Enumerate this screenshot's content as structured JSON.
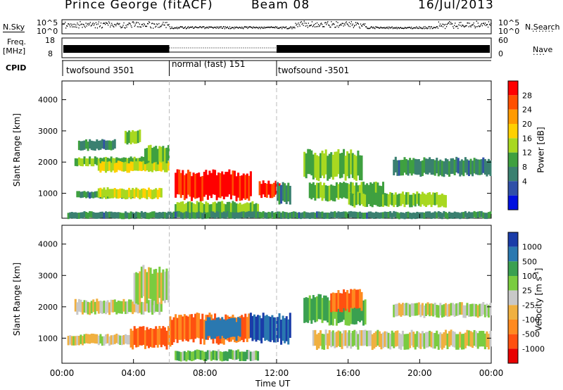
{
  "header": {
    "station": "Prince George (fitACF)",
    "beam": "Beam 08",
    "date": "16/Jul/2013"
  },
  "noise_panel": {
    "left_label": "N.Sky",
    "right_label": "N.Search",
    "left_ticks": [
      "10^5",
      "10^0"
    ],
    "right_ticks": [
      "10^5",
      "10^0"
    ]
  },
  "freq_panel": {
    "left_label_line1": "Freq.",
    "left_label_line2": "[MHz]",
    "right_label": "Nave",
    "left_ticks": [
      "18",
      "8"
    ],
    "right_ticks": [
      "60",
      "0"
    ]
  },
  "cpid_panel": {
    "label": "CPID",
    "modes": [
      "twofsound 3501",
      "normal (fast) 151",
      "twofsound -3501"
    ]
  },
  "chart_data": [
    {
      "type": "heatmap",
      "panel": "power",
      "ylabel": "Slant Range [km]",
      "ylim": [
        200,
        4600
      ],
      "yticks": [
        1000,
        2000,
        3000,
        4000
      ],
      "x_tick_labels": [
        "00:00",
        "04:00",
        "08:00",
        "12:00",
        "16:00",
        "20:00",
        "00:00"
      ],
      "xlim_hours": [
        0,
        24
      ],
      "colorbar": {
        "label": "Power [dB]",
        "ticks": [
          "28",
          "24",
          "20",
          "16",
          "12",
          "8",
          "4"
        ],
        "colors": [
          "#ff0000",
          "#ff5000",
          "#ff9a00",
          "#ffd000",
          "#a8d820",
          "#3fa040",
          "#3a8070",
          "#3050a8",
          "#0010e0"
        ]
      },
      "echo_regions": [
        {
          "t0": 0.7,
          "t1": 5.4,
          "r0": 1900,
          "r1": 2150,
          "level": 12
        },
        {
          "t0": 2.0,
          "t1": 6.0,
          "r0": 1700,
          "r1": 2000,
          "level": 16
        },
        {
          "t0": 4.6,
          "t1": 6.0,
          "r0": 2000,
          "r1": 2500,
          "level": 12
        },
        {
          "t0": 0.8,
          "t1": 4.0,
          "r0": 850,
          "r1": 1050,
          "level": 8
        },
        {
          "t0": 2.0,
          "t1": 5.6,
          "r0": 850,
          "r1": 1150,
          "level": 16
        },
        {
          "t0": 0.9,
          "t1": 3.0,
          "r0": 2400,
          "r1": 2700,
          "level": 8
        },
        {
          "t0": 3.5,
          "t1": 4.4,
          "r0": 2600,
          "r1": 3000,
          "level": 12
        },
        {
          "t0": 6.3,
          "t1": 10.6,
          "r0": 850,
          "r1": 1650,
          "level": 28
        },
        {
          "t0": 6.3,
          "t1": 11.0,
          "r0": 300,
          "r1": 700,
          "level": 12
        },
        {
          "t0": 11.0,
          "t1": 12.2,
          "r0": 900,
          "r1": 1350,
          "level": 28
        },
        {
          "t0": 12.0,
          "t1": 12.8,
          "r0": 700,
          "r1": 1300,
          "level": 8
        },
        {
          "t0": 13.5,
          "t1": 16.8,
          "r0": 1500,
          "r1": 2300,
          "level": 12
        },
        {
          "t0": 13.8,
          "t1": 18.0,
          "r0": 800,
          "r1": 1300,
          "level": 12
        },
        {
          "t0": 16.0,
          "t1": 21.5,
          "r0": 600,
          "r1": 1000,
          "level": 12
        },
        {
          "t0": 18.5,
          "t1": 24.0,
          "r0": 1600,
          "r1": 2100,
          "level": 8
        },
        {
          "t0": 0.3,
          "t1": 24.0,
          "r0": 200,
          "r1": 400,
          "level": 8
        }
      ]
    },
    {
      "type": "heatmap",
      "panel": "velocity",
      "ylabel": "Slant Range [km]",
      "ylim": [
        200,
        4600
      ],
      "yticks": [
        1000,
        2000,
        3000,
        4000
      ],
      "x_tick_labels": [
        "00:00",
        "04:00",
        "08:00",
        "12:00",
        "16:00",
        "20:00",
        "00:00"
      ],
      "xlabel": "Time UT",
      "colorbar": {
        "label": "Velocity [m s^-1]",
        "ticks": [
          "1000",
          "500",
          "100",
          "25",
          "-25",
          "-100",
          "-500",
          "-1000"
        ],
        "colors": [
          "#1a3ca8",
          "#2a78b0",
          "#3aa050",
          "#7acc40",
          "#c8c8c8",
          "#f0b040",
          "#ff8a20",
          "#ff5010",
          "#e80000"
        ]
      },
      "echo_regions": [
        {
          "t0": 0.7,
          "t1": 5.6,
          "r0": 1800,
          "r1": 2200,
          "level": 0
        },
        {
          "t0": 4.0,
          "t1": 6.0,
          "r0": 2200,
          "r1": 3200,
          "level": 0
        },
        {
          "t0": 0.3,
          "t1": 4.5,
          "r0": 800,
          "r1": 1100,
          "level": 0
        },
        {
          "t0": 3.8,
          "t1": 6.2,
          "r0": 700,
          "r1": 1300,
          "level": -300
        },
        {
          "t0": 6.0,
          "t1": 10.5,
          "r0": 900,
          "r1": 1700,
          "level": -300
        },
        {
          "t0": 8.0,
          "t1": 10.0,
          "r0": 1000,
          "r1": 1600,
          "level": 500
        },
        {
          "t0": 10.5,
          "t1": 12.8,
          "r0": 900,
          "r1": 1700,
          "level": 800
        },
        {
          "t0": 6.3,
          "t1": 11.0,
          "r0": 300,
          "r1": 600,
          "level": 80
        },
        {
          "t0": 13.5,
          "t1": 17.0,
          "r0": 1500,
          "r1": 2300,
          "level": 120
        },
        {
          "t0": 15.0,
          "t1": 16.8,
          "r0": 1900,
          "r1": 2500,
          "level": -300
        },
        {
          "t0": 14.0,
          "t1": 24.0,
          "r0": 700,
          "r1": 1200,
          "level": 0
        },
        {
          "t0": 18.5,
          "t1": 24.0,
          "r0": 1700,
          "r1": 2100,
          "level": 0
        }
      ]
    }
  ]
}
